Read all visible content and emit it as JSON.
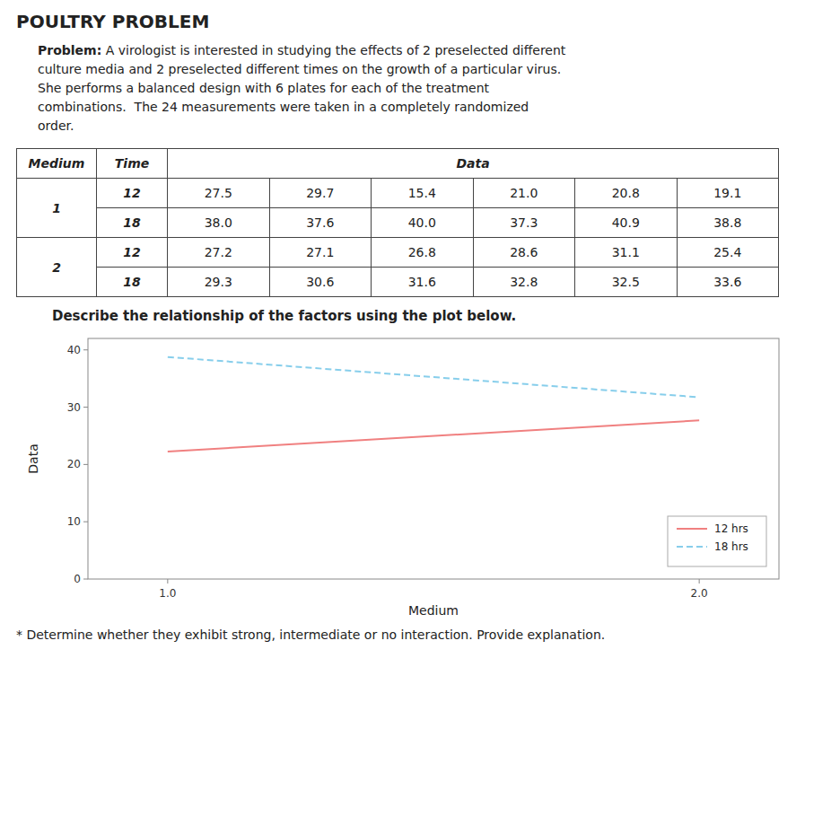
{
  "chart_data": {
    "type": "line",
    "title": "POULTRY PROBLEM",
    "x": [
      1.0,
      2.0
    ],
    "series": [
      {
        "name": "12 hrs",
        "color": "#F08080",
        "line_style": "solid",
        "values": [
          22.25,
          27.7
        ]
      },
      {
        "name": "18 hrs",
        "color": "#87CEEB",
        "line_style": "dashed",
        "values": [
          38.767,
          31.733
        ]
      }
    ],
    "x_label": "Medium",
    "y_label": "Data",
    "xlim": [
      0.85,
      2.15
    ],
    "xticks": [
      {
        "value": 1.0,
        "label": "1.0"
      },
      {
        "value": 2.0,
        "label": "2.0"
      }
    ],
    "ylim": [
      0,
      42
    ],
    "yticks": [
      0,
      10,
      20,
      30,
      40
    ],
    "grid": false,
    "legend": "lower right"
  },
  "problem": {
    "lead": "Problem:",
    "lines": [
      " A virologist is interested in studying the effects of 2 preselected different",
      "culture media and 2 preselected different times on the growth of a particular virus.",
      "She performs a balanced design with 6 plates for each of the treatment",
      "combinations.  The 24 measurements were taken in a completely randomized",
      "order."
    ]
  },
  "table": {
    "headers": [
      "Medium",
      "Time",
      "Data"
    ],
    "groups": [
      {
        "medium": "1",
        "rows": [
          {
            "time": "12",
            "values": [
              "27.5",
              "29.7",
              "15.4",
              "21.0",
              "20.8",
              "19.1"
            ]
          },
          {
            "time": "18",
            "values": [
              "38.0",
              "37.6",
              "40.0",
              "37.3",
              "40.9",
              "38.8"
            ]
          }
        ]
      },
      {
        "medium": "2",
        "rows": [
          {
            "time": "12",
            "values": [
              "27.2",
              "27.1",
              "26.8",
              "28.6",
              "31.1",
              "25.4"
            ]
          },
          {
            "time": "18",
            "values": [
              "29.3",
              "30.6",
              "31.6",
              "32.8",
              "32.5",
              "33.6"
            ]
          }
        ]
      }
    ]
  },
  "note": "Describe the relationship of the factors using the plot below.",
  "footer": "* Determine whether they exhibit strong, intermediate or no interaction. Provide explanation."
}
